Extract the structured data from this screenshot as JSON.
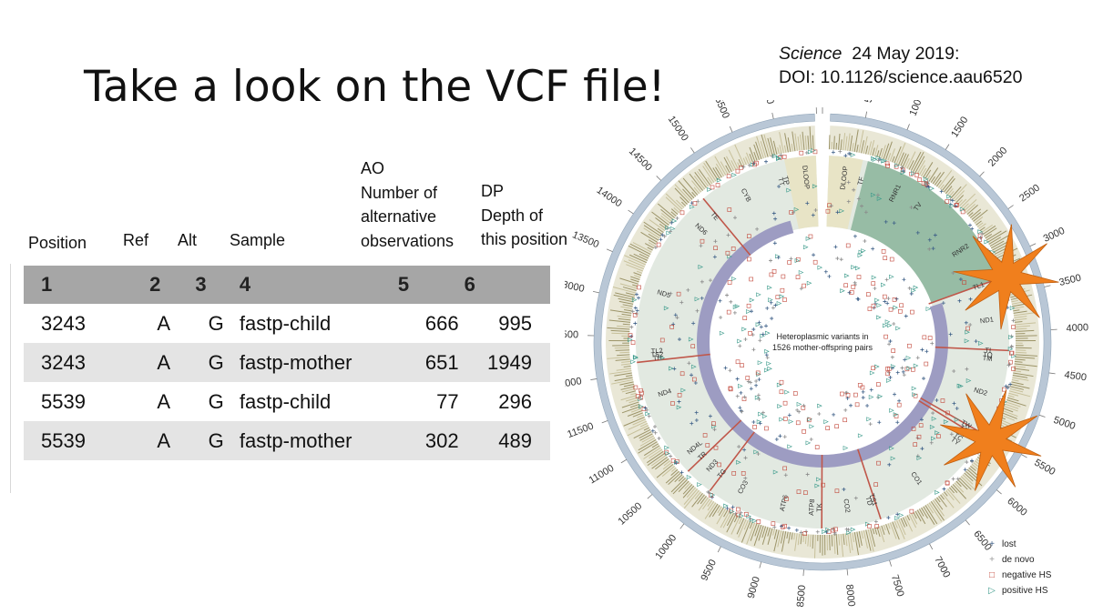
{
  "slide": {
    "title": "Take a look on the VCF file!",
    "citation": {
      "journal": "Science",
      "date": "24 May 2019:",
      "doi": "DOI: 10.1126/science.aau6520"
    }
  },
  "column_labels": {
    "position": "Position",
    "ref": "Ref",
    "alt": "Alt",
    "sample": "Sample",
    "ao_lines": [
      "AO",
      "Number of",
      "alternative",
      "observations"
    ],
    "dp_lines": [
      "DP",
      "Depth of",
      "this position"
    ]
  },
  "table": {
    "header": [
      "1",
      "2",
      "3",
      "4",
      "5",
      "6"
    ],
    "rows": [
      [
        "3243",
        "A",
        "G",
        "fastp-child",
        "666",
        "995"
      ],
      [
        "3243",
        "A",
        "G",
        "fastp-mother",
        "651",
        "1949"
      ],
      [
        "5539",
        "A",
        "G",
        "fastp-child",
        "77",
        "296"
      ],
      [
        "5539",
        "A",
        "G",
        "fastp-mother",
        "302",
        "489"
      ]
    ]
  },
  "figure": {
    "center_text": [
      "Heteroplasmic variants in",
      "1526 mother-offspring pairs"
    ],
    "position_ticks": [
      "0",
      "500",
      "1000",
      "1500",
      "2000",
      "2500",
      "3000",
      "3500",
      "4000",
      "4500",
      "5000",
      "5500",
      "6000",
      "6500",
      "7000",
      "7500",
      "8000",
      "8500",
      "9000",
      "9500",
      "10000",
      "10500",
      "11000",
      "11500",
      "12000",
      "12500",
      "13000",
      "13500",
      "14000",
      "14500",
      "15000",
      "15500",
      "16000",
      "16500"
    ],
    "genome_length": 16569,
    "gene_labels": [
      "DLOOP",
      "TF",
      "RNR1",
      "TV",
      "RNR2",
      "TL1",
      "ND1",
      "TI",
      "TM",
      "TQ",
      "ND2",
      "TW",
      "TA",
      "TN",
      "TC",
      "TY",
      "CO1",
      "TS1",
      "TD",
      "CO2",
      "TK",
      "ATP8",
      "ATP6",
      "CO3",
      "TG",
      "ND3",
      "TR",
      "ND4L",
      "ND4",
      "TH",
      "TS2",
      "TL2",
      "ND5",
      "ND6",
      "TE",
      "CYB",
      "TT",
      "TP",
      "DLOOP"
    ],
    "highlight_positions": [
      3243,
      5539
    ],
    "highlight_color": "#f07f1d",
    "legend": [
      {
        "symbol": "+",
        "label": "lost",
        "color": "#3d5f87"
      },
      {
        "symbol": "+",
        "label": "de novo",
        "color": "#9a9a9a"
      },
      {
        "symbol": "□",
        "label": "negative HS",
        "color": "#c2473a"
      },
      {
        "symbol": "▷",
        "label": "positive HS",
        "color": "#3a9a8a"
      }
    ]
  }
}
